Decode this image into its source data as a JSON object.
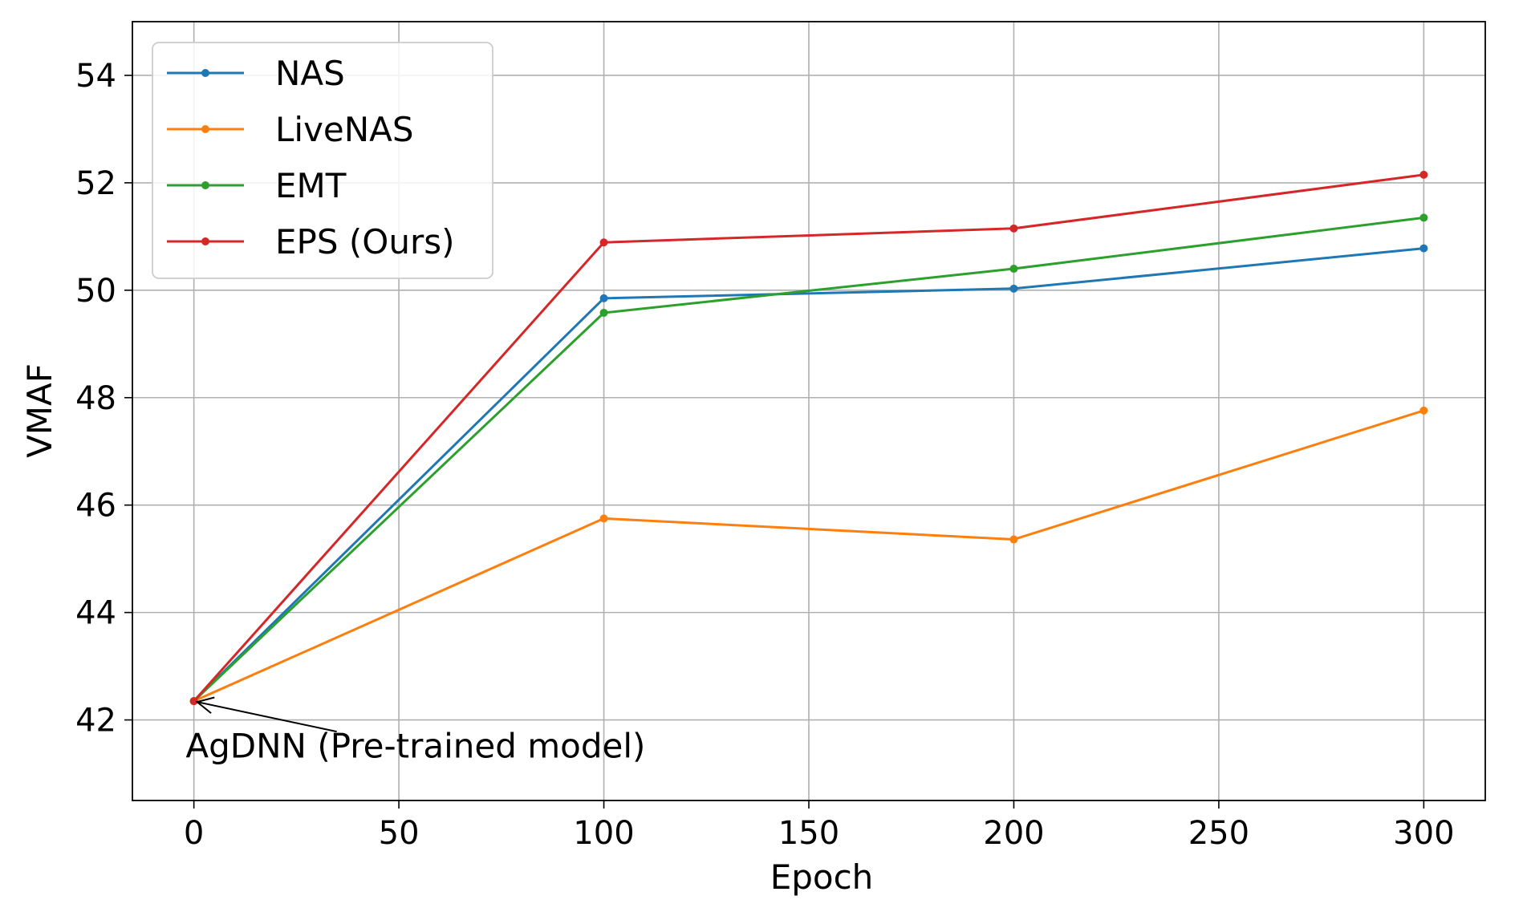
{
  "chart_data": {
    "type": "line",
    "title": "",
    "xlabel": "Epoch",
    "ylabel": "VMAF",
    "x": [
      0,
      100,
      200,
      300
    ],
    "xlim": [
      -15,
      315
    ],
    "ylim": [
      40.5,
      55
    ],
    "xticks": [
      0,
      50,
      100,
      150,
      200,
      250,
      300
    ],
    "yticks": [
      42,
      44,
      46,
      48,
      50,
      52,
      54
    ],
    "xtick_labels": [
      "0",
      "50",
      "100",
      "150",
      "200",
      "250",
      "300"
    ],
    "ytick_labels": [
      "42",
      "44",
      "46",
      "48",
      "50",
      "52",
      "54"
    ],
    "grid": true,
    "legend_position": "upper-left",
    "series": [
      {
        "name": "NAS",
        "color": "#1f77b4",
        "values": [
          42.35,
          49.85,
          50.03,
          50.78
        ]
      },
      {
        "name": "LiveNAS",
        "color": "#ff7f0e",
        "values": [
          42.35,
          45.75,
          45.36,
          47.76
        ]
      },
      {
        "name": "EMT",
        "color": "#2ca02c",
        "values": [
          42.35,
          49.58,
          50.4,
          51.35
        ]
      },
      {
        "name": "EPS (Ours)",
        "color": "#d62728",
        "values": [
          42.35,
          50.89,
          51.15,
          52.15
        ]
      }
    ],
    "annotation": {
      "text": "AgDNN (Pre-trained model)",
      "point": [
        0,
        42.35
      ],
      "text_anchor_data": [
        -2,
        41.3
      ]
    }
  }
}
